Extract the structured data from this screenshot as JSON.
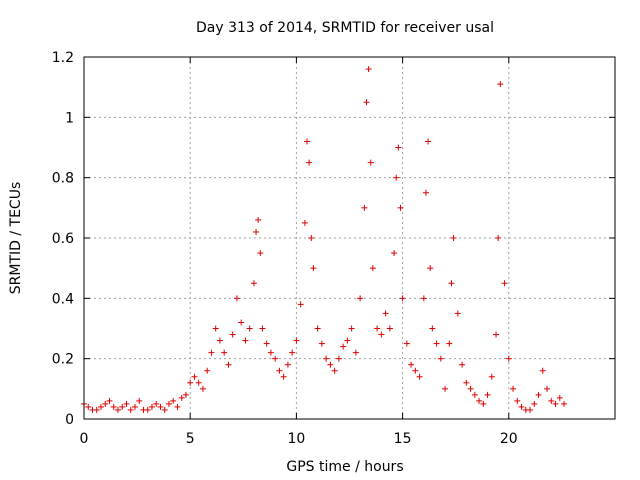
{
  "chart_data": {
    "type": "scatter",
    "title": "Day 313 of 2014, SRMTID for receiver usal",
    "xlabel": "GPS time / hours",
    "ylabel": "SRMTID / TECUs",
    "xlim": [
      0,
      25
    ],
    "ylim": [
      0,
      1.2
    ],
    "grid": true,
    "legend": "none",
    "marker": "+",
    "marker_color": "#e00000",
    "x_ticks": [
      {
        "value": 0,
        "label": "0"
      },
      {
        "value": 5,
        "label": "5"
      },
      {
        "value": 10,
        "label": "10"
      },
      {
        "value": 15,
        "label": "15"
      },
      {
        "value": 20,
        "label": "20"
      }
    ],
    "y_ticks": [
      {
        "value": 0,
        "label": "0"
      },
      {
        "value": 0.2,
        "label": "0.2"
      },
      {
        "value": 0.4,
        "label": "0.4"
      },
      {
        "value": 0.6,
        "label": "0.6"
      },
      {
        "value": 0.8,
        "label": "0.8"
      },
      {
        "value": 1.0,
        "label": "1"
      },
      {
        "value": 1.2,
        "label": "1.2"
      }
    ],
    "series": [
      {
        "name": "SRMTID",
        "x": [
          0.0,
          0.2,
          0.4,
          0.6,
          0.8,
          1.0,
          1.2,
          1.4,
          1.6,
          1.8,
          2.0,
          2.2,
          2.4,
          2.6,
          2.8,
          3.0,
          3.2,
          3.4,
          3.6,
          3.8,
          4.0,
          4.2,
          4.4,
          4.6,
          4.8,
          5.0,
          5.2,
          5.4,
          5.6,
          5.8,
          6.0,
          6.2,
          6.4,
          6.6,
          6.8,
          7.0,
          7.2,
          7.4,
          7.6,
          7.8,
          8.0,
          8.1,
          8.2,
          8.3,
          8.4,
          8.6,
          8.8,
          9.0,
          9.2,
          9.4,
          9.6,
          9.8,
          10.0,
          10.2,
          10.4,
          10.5,
          10.6,
          10.7,
          10.8,
          11.0,
          11.2,
          11.4,
          11.6,
          11.8,
          12.0,
          12.2,
          12.4,
          12.6,
          12.8,
          13.0,
          13.2,
          13.3,
          13.4,
          13.5,
          13.6,
          13.8,
          14.0,
          14.2,
          14.4,
          14.6,
          14.7,
          14.8,
          14.9,
          15.0,
          15.2,
          15.4,
          15.6,
          15.8,
          16.0,
          16.1,
          16.2,
          16.3,
          16.4,
          16.6,
          16.8,
          17.0,
          17.2,
          17.3,
          17.4,
          17.6,
          17.8,
          18.0,
          18.2,
          18.4,
          18.6,
          18.8,
          19.0,
          19.2,
          19.4,
          19.5,
          19.6,
          19.8,
          20.0,
          20.2,
          20.4,
          20.6,
          20.8,
          21.0,
          21.2,
          21.4,
          21.6,
          21.8,
          22.0,
          22.2,
          22.4,
          22.6
        ],
        "y": [
          0.05,
          0.04,
          0.03,
          0.03,
          0.04,
          0.05,
          0.06,
          0.04,
          0.03,
          0.04,
          0.05,
          0.03,
          0.04,
          0.06,
          0.03,
          0.03,
          0.04,
          0.05,
          0.04,
          0.03,
          0.05,
          0.06,
          0.04,
          0.07,
          0.08,
          0.12,
          0.14,
          0.12,
          0.1,
          0.16,
          0.22,
          0.3,
          0.26,
          0.22,
          0.18,
          0.28,
          0.4,
          0.32,
          0.26,
          0.3,
          0.45,
          0.62,
          0.66,
          0.55,
          0.3,
          0.25,
          0.22,
          0.2,
          0.16,
          0.14,
          0.18,
          0.22,
          0.26,
          0.38,
          0.65,
          0.92,
          0.85,
          0.6,
          0.5,
          0.3,
          0.25,
          0.2,
          0.18,
          0.16,
          0.2,
          0.24,
          0.26,
          0.3,
          0.22,
          0.4,
          0.7,
          1.05,
          1.16,
          0.85,
          0.5,
          0.3,
          0.28,
          0.35,
          0.3,
          0.55,
          0.8,
          0.9,
          0.7,
          0.4,
          0.25,
          0.18,
          0.16,
          0.14,
          0.4,
          0.75,
          0.92,
          0.5,
          0.3,
          0.25,
          0.2,
          0.1,
          0.25,
          0.45,
          0.6,
          0.35,
          0.18,
          0.12,
          0.1,
          0.08,
          0.06,
          0.05,
          0.08,
          0.14,
          0.28,
          0.6,
          1.11,
          0.45,
          0.2,
          0.1,
          0.06,
          0.04,
          0.03,
          0.03,
          0.05,
          0.08,
          0.16,
          0.1,
          0.06,
          0.05,
          0.07,
          0.05
        ]
      }
    ]
  }
}
